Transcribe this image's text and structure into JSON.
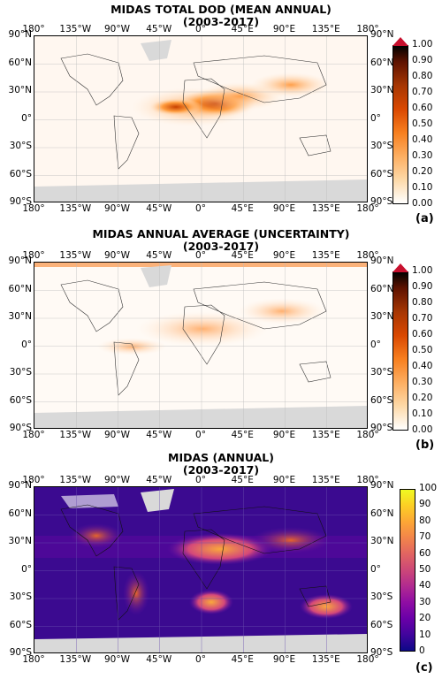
{
  "panels": [
    {
      "title1": "MIDAS TOTAL DOD (MEAN ANNUAL)",
      "title2": "(2003-2017)",
      "label": "(a)",
      "colormap": "white-orange-red-black",
      "colorbar_ticks": [
        "1.00",
        "0.90",
        "0.80",
        "0.70",
        "0.60",
        "0.50",
        "0.40",
        "0.30",
        "0.20",
        "0.10",
        "0.00"
      ]
    },
    {
      "title1": "MIDAS ANNUAL AVERAGE  (UNCERTAINTY)",
      "title2": "(2003-2017)",
      "label": "(b)",
      "colormap": "white-orange-red-black",
      "colorbar_ticks": [
        "1.00",
        "0.90",
        "0.80",
        "0.70",
        "0.60",
        "0.50",
        "0.40",
        "0.30",
        "0.20",
        "0.10",
        "0.00"
      ]
    },
    {
      "title1": "MIDAS  (ANNUAL)",
      "title2": "(2003-2017)",
      "label": "(c)",
      "colormap": "plasma",
      "colorbar_ticks": [
        "100",
        "90",
        "80",
        "70",
        "60",
        "50",
        "40",
        "30",
        "20",
        "10",
        "0"
      ]
    }
  ],
  "lon_ticks": [
    "180°",
    "135°W",
    "90°W",
    "45°W",
    "0°",
    "45°E",
    "90°E",
    "135°E",
    "180°"
  ],
  "lat_ticks": [
    "90°N",
    "60°N",
    "30°N",
    "0°",
    "30°S",
    "60°S",
    "90°S"
  ]
}
